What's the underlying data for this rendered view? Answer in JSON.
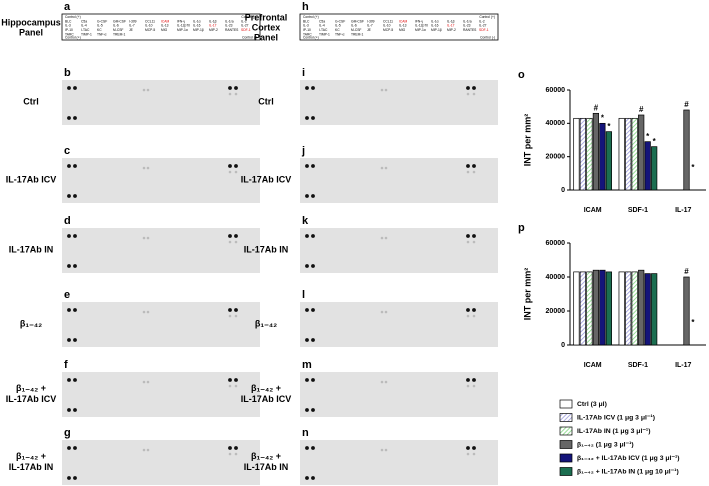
{
  "panels": {
    "left": {
      "title": [
        "Hippocampus",
        "Panel"
      ],
      "letters": [
        "a",
        "b",
        "c",
        "d",
        "e",
        "f",
        "g"
      ],
      "labels": [
        [
          "Ctrl"
        ],
        [
          "IL-17Ab ICV"
        ],
        [
          "IL-17Ab IN"
        ],
        [
          "β₁₋₄₂"
        ],
        [
          "β₁₋₄₂ +",
          "IL-17Ab ICV"
        ],
        [
          "β₁₋₄₂ +",
          "IL-17Ab IN"
        ]
      ]
    },
    "right": {
      "title": [
        "Prefrontal",
        "Cortex",
        "Panel"
      ],
      "letters": [
        "h",
        "i",
        "j",
        "k",
        "l",
        "m",
        "n"
      ],
      "labels": [
        [
          "Ctrl"
        ],
        [
          "IL-17Ab ICV"
        ],
        [
          "IL-17Ab IN"
        ],
        [
          "β₁₋₄₂"
        ],
        [
          "β₁₋₄₂ +",
          "IL-17Ab ICV"
        ],
        [
          "β₁₋₄₂ +",
          "IL-17Ab IN"
        ]
      ]
    },
    "array_map": {
      "corners": [
        "Control (+)",
        "Control (+)",
        "Control (+)",
        "Control (-)"
      ],
      "rows": [
        [
          "BLC",
          "C5a",
          "G-CSF",
          "GM-CSF",
          "I-309",
          "CCL11",
          "ICAM",
          "IFN-γ",
          "IL-1α",
          "IL-1β",
          "IL-1ra",
          "IL-2"
        ],
        [
          "IL-3",
          "IL-4",
          "IL-5",
          "IL-6",
          "IL-7",
          "IL-10",
          "IL-13",
          "IL-12p70",
          "IL-16",
          "IL-17",
          "IL-23",
          "IL-27"
        ],
        [
          "IP-10",
          "I-TAC",
          "KC",
          "M-CSF",
          "JE",
          "MCP-5",
          "MIG",
          "MIP-1α",
          "MIP-1β",
          "MIP-2",
          "RANTES",
          "SDF-1"
        ],
        [
          "TARC",
          "TIMP-1",
          "TNF-α",
          "TREM-1"
        ]
      ],
      "highlighted": [
        "ICAM",
        "IL-17",
        "SDF-1"
      ]
    }
  },
  "chart_data": [
    {
      "type": "bar",
      "letter": "o",
      "ylabel": "INT per mm²",
      "categories": [
        "ICAM",
        "SDF-1",
        "IL-17"
      ],
      "ylim": [
        0,
        60000
      ],
      "yticks": [
        0,
        20000,
        40000,
        60000
      ],
      "series": [
        {
          "name": "Ctrl (3 μl)",
          "color": "#ffffff",
          "values": [
            43000,
            43000,
            0
          ]
        },
        {
          "name": "IL-17Ab ICV (1 μg 3 μl⁻¹)",
          "color": "#9999dd",
          "pattern": "hatch",
          "values": [
            43000,
            43000,
            0
          ]
        },
        {
          "name": "IL-17Ab IN (1 μg 3 μl⁻¹)",
          "color": "#7fd67f",
          "pattern": "hatch",
          "values": [
            43000,
            43000,
            0
          ]
        },
        {
          "name": "β₁₋₄₂ (1 μg 3 μl⁻¹)",
          "color": "#666666",
          "values": [
            46000,
            45000,
            48000
          ],
          "markers": [
            "#",
            "#",
            "#"
          ]
        },
        {
          "name": "β₁₋₄₂ + IL-17Ab ICV (1 μg 3 μl⁻¹)",
          "color": "#14147a",
          "values": [
            40000,
            29000,
            0
          ],
          "markers": [
            "*",
            "*",
            "*"
          ]
        },
        {
          "name": "β₁₋₄₂ + IL-17Ab IN (1 μg 10 μl⁻¹)",
          "color": "#1b6e50",
          "values": [
            35000,
            26000,
            0
          ],
          "markers": [
            "*",
            "*",
            null
          ]
        }
      ]
    },
    {
      "type": "bar",
      "letter": "p",
      "ylabel": "INT per mm²",
      "categories": [
        "ICAM",
        "SDF-1",
        "IL-17"
      ],
      "ylim": [
        0,
        60000
      ],
      "yticks": [
        0,
        20000,
        40000,
        60000
      ],
      "series": [
        {
          "color": "#ffffff",
          "values": [
            43000,
            43000,
            0
          ]
        },
        {
          "color": "#9999dd",
          "pattern": "hatch",
          "values": [
            43000,
            43000,
            0
          ]
        },
        {
          "color": "#7fd67f",
          "pattern": "hatch",
          "values": [
            43000,
            43000,
            0
          ]
        },
        {
          "color": "#666666",
          "values": [
            44000,
            44000,
            40000
          ],
          "markers": [
            null,
            null,
            "#"
          ]
        },
        {
          "color": "#14147a",
          "values": [
            44000,
            42000,
            0
          ],
          "markers": [
            null,
            null,
            "*"
          ]
        },
        {
          "color": "#1b6e50",
          "values": [
            43000,
            42000,
            0
          ]
        }
      ]
    }
  ]
}
